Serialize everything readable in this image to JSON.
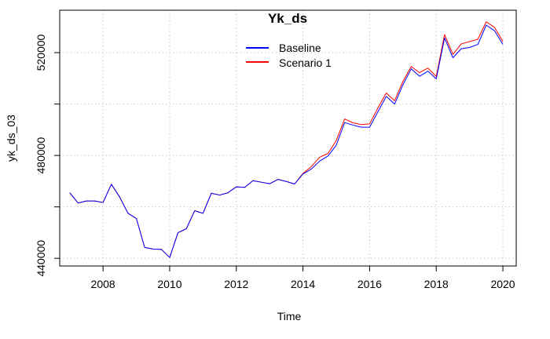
{
  "chart_data": {
    "type": "line",
    "title": "Yk_ds",
    "xlabel": "Time",
    "ylabel": "yk_ds_03",
    "xlim": [
      2006.7,
      2020.4
    ],
    "ylim": [
      437000,
      536500
    ],
    "x_ticks": [
      2008,
      2010,
      2012,
      2014,
      2016,
      2018,
      2020
    ],
    "y_ticks": [
      440000,
      460000,
      480000,
      500000,
      520000
    ],
    "y_tick_labels": [
      "440000",
      "",
      "480000",
      "",
      "520000"
    ],
    "grid": true,
    "legend_position": "top-center",
    "colors": {
      "baseline": "#0000FF",
      "scenario1": "#FF0000",
      "grid": "#c8c8c8"
    },
    "x": [
      2007.0,
      2007.25,
      2007.5,
      2007.75,
      2008.0,
      2008.25,
      2008.5,
      2008.75,
      2009.0,
      2009.25,
      2009.5,
      2009.75,
      2010.0,
      2010.25,
      2010.5,
      2010.75,
      2011.0,
      2011.25,
      2011.5,
      2011.75,
      2012.0,
      2012.25,
      2012.5,
      2012.75,
      2013.0,
      2013.25,
      2013.5,
      2013.75,
      2014.0,
      2014.25,
      2014.5,
      2014.75,
      2015.0,
      2015.25,
      2015.5,
      2015.75,
      2016.0,
      2016.25,
      2016.5,
      2016.75,
      2017.0,
      2017.25,
      2017.5,
      2017.75,
      2018.0,
      2018.25,
      2018.5,
      2018.75,
      2019.0,
      2019.25,
      2019.5,
      2019.75,
      2020.0
    ],
    "series": [
      {
        "name": "Baseline",
        "color": "#0000FF",
        "values": [
          465500,
          461500,
          462300,
          462300,
          461700,
          468800,
          463800,
          457500,
          455500,
          444200,
          443600,
          443500,
          440300,
          450000,
          451500,
          458500,
          457500,
          465300,
          464600,
          465500,
          467800,
          467600,
          470200,
          469600,
          469000,
          470700,
          469900,
          468900,
          472800,
          474700,
          477800,
          479800,
          484000,
          492800,
          491800,
          491000,
          491000,
          497000,
          503000,
          500000,
          507500,
          513700,
          510800,
          512800,
          509800,
          525700,
          518000,
          521500,
          522000,
          523200,
          530700,
          528500,
          523200
        ]
      },
      {
        "name": "Scenario 1",
        "color": "#FF0000",
        "values": [
          465500,
          461500,
          462300,
          462300,
          461700,
          468800,
          463800,
          457500,
          455500,
          444200,
          443600,
          443500,
          440300,
          450000,
          451500,
          458500,
          457500,
          465300,
          464600,
          465500,
          467800,
          467600,
          470200,
          469600,
          469000,
          470700,
          469900,
          468900,
          473000,
          475700,
          479300,
          480800,
          485800,
          494200,
          492700,
          492000,
          492300,
          498500,
          504300,
          501300,
          508800,
          514600,
          512200,
          514000,
          510700,
          527000,
          519300,
          523400,
          524300,
          525200,
          532000,
          529800,
          524300
        ]
      }
    ]
  }
}
